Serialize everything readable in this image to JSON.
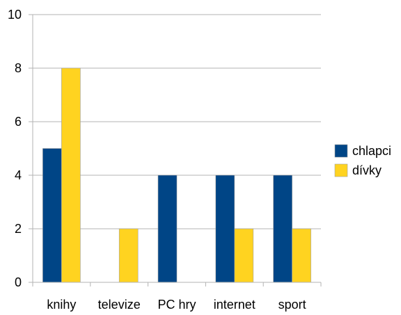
{
  "chart_data": {
    "type": "bar",
    "categories": [
      "knihy",
      "televize",
      "PC hry",
      "internet",
      "sport"
    ],
    "series": [
      {
        "name": "chlapci",
        "values": [
          5,
          0,
          4,
          4,
          4
        ],
        "color": "#004586"
      },
      {
        "name": "dívky",
        "values": [
          8,
          2,
          0,
          2,
          2
        ],
        "color": "#FFD320"
      }
    ],
    "ylim": [
      0,
      10
    ],
    "yticks": [
      0,
      2,
      4,
      6,
      8,
      10
    ],
    "grid": true,
    "legend_position": "right",
    "colors": {
      "grid": "#b3b3b3",
      "axis": "#b3b3b3",
      "bar_outline": "#a0a0a0"
    }
  }
}
